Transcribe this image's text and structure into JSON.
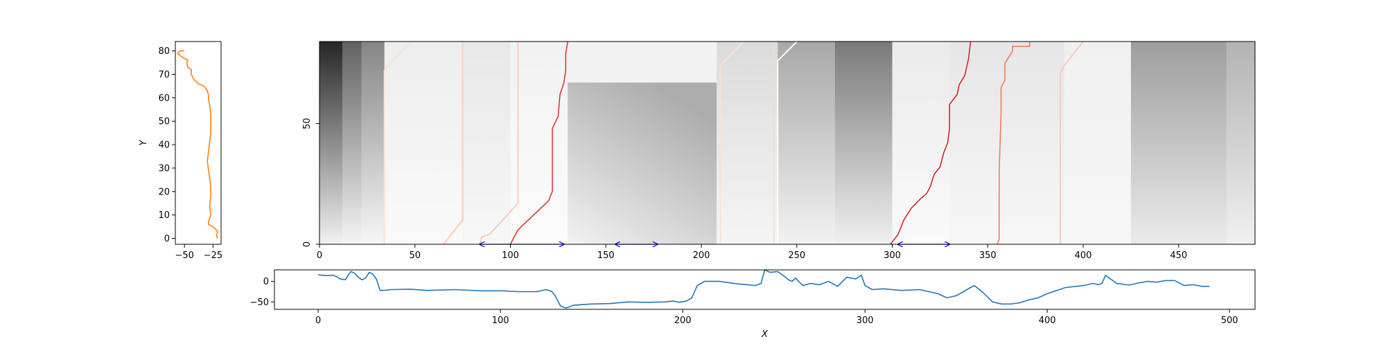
{
  "chart_data": [
    {
      "panel": "left",
      "type": "line",
      "ylabel": "Y",
      "xlim": [
        -58,
        -18
      ],
      "ylim": [
        -2.5,
        84
      ],
      "xticks": [
        -50,
        -25
      ],
      "xtick_labels": [
        "−50",
        "−25"
      ],
      "yticks": [
        0,
        10,
        20,
        30,
        40,
        50,
        60,
        70,
        80
      ],
      "ytick_labels": [
        "0",
        "10",
        "20",
        "30",
        "40",
        "50",
        "60",
        "70",
        "80"
      ],
      "color": "#ff7f0e",
      "series": [
        {
          "name": "profile",
          "x": [
            -21,
            -22,
            -21,
            -25,
            -29,
            -29,
            -27,
            -28,
            -27,
            -27,
            -28,
            -29,
            -30,
            -29,
            -28,
            -27,
            -27,
            -27,
            -28,
            -29,
            -29,
            -29,
            -30,
            -33,
            -38,
            -42,
            -44,
            -44,
            -47,
            -48,
            -47,
            -51,
            -54,
            -56,
            -54,
            -50
          ],
          "y": [
            0,
            1,
            3,
            5,
            6,
            7,
            10,
            14,
            18,
            22,
            26,
            29,
            33,
            37,
            41,
            45,
            49,
            53,
            57,
            59,
            60,
            61,
            63,
            65,
            66,
            68,
            70,
            72,
            73,
            75,
            76,
            77,
            78,
            79,
            80,
            80
          ]
        }
      ]
    },
    {
      "panel": "main",
      "type": "heatmap",
      "xlim": [
        0,
        490
      ],
      "ylim": [
        0,
        84
      ],
      "xticks": [
        0,
        50,
        100,
        150,
        200,
        250,
        300,
        350,
        400,
        450
      ],
      "xtick_labels": [
        "0",
        "50",
        "100",
        "150",
        "200",
        "250",
        "300",
        "350",
        "400",
        "450"
      ],
      "yticks": [
        0,
        50
      ],
      "ytick_labels": [
        "0",
        "50"
      ],
      "colormap": "greys",
      "columns": [
        {
          "x0": 0,
          "x1": 12,
          "top": 0.85,
          "bottom": 0.05
        },
        {
          "x0": 12,
          "x1": 22,
          "top": 0.62,
          "bottom": 0.04
        },
        {
          "x0": 22,
          "x1": 34,
          "top": 0.48,
          "bottom": 0.03
        },
        {
          "x0": 34,
          "x1": 75,
          "top": 0.07,
          "bottom": 0.02
        },
        {
          "x0": 75,
          "x1": 100,
          "top": 0.09,
          "bottom": 0.03
        },
        {
          "x0": 100,
          "x1": 130,
          "top": 0.05,
          "bottom": 0.01
        },
        {
          "x0": 130,
          "x1": 208,
          "top": 0.05,
          "bottom": 0.04
        },
        {
          "x0": 208,
          "x1": 240,
          "top": 0.14,
          "bottom": 0.04
        },
        {
          "x0": 240,
          "x1": 270,
          "top": 0.34,
          "bottom": 0.05
        },
        {
          "x0": 270,
          "x1": 300,
          "top": 0.52,
          "bottom": 0.06
        },
        {
          "x0": 300,
          "x1": 330,
          "top": 0.08,
          "bottom": 0.02
        },
        {
          "x0": 330,
          "x1": 390,
          "top": 0.1,
          "bottom": 0.03
        },
        {
          "x0": 390,
          "x1": 425,
          "top": 0.06,
          "bottom": 0.03
        },
        {
          "x0": 425,
          "x1": 475,
          "top": 0.38,
          "bottom": 0.08
        },
        {
          "x0": 475,
          "x1": 490,
          "top": 0.3,
          "bottom": 0.06
        }
      ],
      "shade_block": {
        "x0": 130,
        "x1": 208,
        "y0": 0,
        "y1": 67,
        "top": 0.05,
        "bottom": 0.32
      },
      "traces": [
        {
          "name": "trace-1",
          "color": "#fde0d2",
          "width": 2,
          "x": [
            34,
            34,
            36,
            48
          ],
          "y": [
            0,
            72,
            74,
            84
          ]
        },
        {
          "name": "trace-2",
          "color": "#fcd7c4",
          "width": 3,
          "x": [
            65,
            75,
            75,
            75
          ],
          "y": [
            0,
            10,
            50,
            84
          ]
        },
        {
          "name": "trace-3",
          "color": "#fcc1a6",
          "width": 1.5,
          "x": [
            84,
            85,
            89,
            104,
            104
          ],
          "y": [
            0,
            3,
            4,
            17,
            84
          ]
        },
        {
          "name": "trace-4",
          "color": "#d73027",
          "width": 1.5,
          "x": [
            100,
            102,
            104,
            108,
            112,
            116,
            120,
            122,
            122,
            125,
            126,
            128,
            129,
            129,
            130
          ],
          "y": [
            0,
            3,
            6,
            9,
            12,
            15,
            18,
            22,
            48,
            53,
            62,
            67,
            72,
            79,
            84
          ]
        },
        {
          "name": "trace-5",
          "color": "#fde0d2",
          "width": 2,
          "x": [
            210,
            210,
            222
          ],
          "y": [
            0,
            74,
            84
          ]
        },
        {
          "name": "trace-6",
          "color": "#ffffff",
          "width": 2,
          "x": [
            240,
            240,
            250
          ],
          "y": [
            0,
            76,
            84
          ]
        },
        {
          "name": "trace-7",
          "color": "#fcd7c4",
          "width": 1.5,
          "x": [
            238,
            238
          ],
          "y": [
            0,
            84
          ]
        },
        {
          "name": "trace-8",
          "color": "#d7191c",
          "width": 1.5,
          "x": [
            299,
            303,
            306,
            310,
            315,
            318,
            320,
            322,
            325,
            327,
            329,
            330,
            330,
            334,
            335,
            338,
            340,
            341
          ],
          "y": [
            0,
            4,
            10,
            15,
            19,
            21,
            24,
            29,
            32,
            38,
            42,
            48,
            58,
            62,
            66,
            70,
            77,
            84
          ]
        },
        {
          "name": "trace-9",
          "color": "#f4734f",
          "width": 1.5,
          "x": [
            355,
            356,
            356,
            357,
            357,
            359,
            359,
            363,
            363,
            372,
            372
          ],
          "y": [
            0,
            2,
            30,
            55,
            65,
            68,
            75,
            80,
            82,
            82,
            84
          ]
        },
        {
          "name": "trace-10",
          "color": "#fcc1a6",
          "width": 1.5,
          "x": [
            388,
            388,
            390,
            400
          ],
          "y": [
            0,
            71,
            74,
            84
          ]
        }
      ],
      "annotations": [
        {
          "type": "double-arrow",
          "x0": 84,
          "x1": 128,
          "color": "#0000ff"
        },
        {
          "type": "double-arrow",
          "x0": 155,
          "x1": 177,
          "color": "#0000ff"
        },
        {
          "type": "double-arrow",
          "x0": 303,
          "x1": 330,
          "color": "#0000ff"
        }
      ]
    },
    {
      "panel": "bottom",
      "type": "line",
      "xlabel": "X",
      "xlim": [
        -24,
        514
      ],
      "ylim": [
        -68,
        28
      ],
      "xticks": [
        0,
        100,
        200,
        300,
        400,
        500
      ],
      "xtick_labels": [
        "0",
        "100",
        "200",
        "300",
        "400",
        "500"
      ],
      "yticks": [
        0,
        -50
      ],
      "ytick_labels": [
        "0",
        "−50"
      ],
      "color": "#1f77b4",
      "series": [
        {
          "name": "signal",
          "x": [
            0,
            4,
            8,
            10,
            12,
            15,
            16,
            18,
            20,
            22,
            24,
            26,
            28,
            30,
            32,
            34,
            36,
            40,
            50,
            60,
            75,
            90,
            100,
            110,
            120,
            125,
            128,
            130,
            133,
            136,
            140,
            150,
            160,
            170,
            180,
            190,
            195,
            198,
            202,
            205,
            208,
            212,
            220,
            230,
            240,
            243,
            245,
            248,
            252,
            255,
            258,
            260,
            262,
            264,
            266,
            270,
            275,
            280,
            285,
            290,
            295,
            298,
            300,
            304,
            310,
            320,
            330,
            340,
            345,
            350,
            354,
            358,
            360,
            365,
            370,
            375,
            380,
            385,
            390,
            395,
            400,
            410,
            420,
            425,
            428,
            430,
            432,
            434,
            436,
            438,
            440,
            445,
            450,
            455,
            460,
            465,
            470,
            475,
            480,
            485,
            489
          ],
          "y": [
            16,
            14,
            15,
            12,
            6,
            4,
            12,
            24,
            20,
            10,
            4,
            8,
            22,
            18,
            5,
            -22,
            -22,
            -20,
            -19,
            -22,
            -20,
            -23,
            -23,
            -25,
            -25,
            -20,
            -24,
            -35,
            -60,
            -65,
            -58,
            -55,
            -54,
            -50,
            -51,
            -50,
            -48,
            -51,
            -48,
            -40,
            -10,
            0,
            0,
            -6,
            -10,
            -5,
            28,
            22,
            24,
            15,
            4,
            0,
            8,
            -2,
            -10,
            -5,
            -8,
            0,
            -12,
            10,
            6,
            15,
            -10,
            -20,
            -18,
            -22,
            -20,
            -30,
            -40,
            -35,
            -25,
            -15,
            -10,
            -28,
            -50,
            -55,
            -55,
            -52,
            -45,
            -40,
            -30,
            -15,
            -10,
            -5,
            -8,
            -5,
            15,
            8,
            2,
            -5,
            -6,
            -9,
            -4,
            0,
            -2,
            2,
            2,
            -10,
            -8,
            -12,
            -12
          ]
        }
      ]
    }
  ]
}
